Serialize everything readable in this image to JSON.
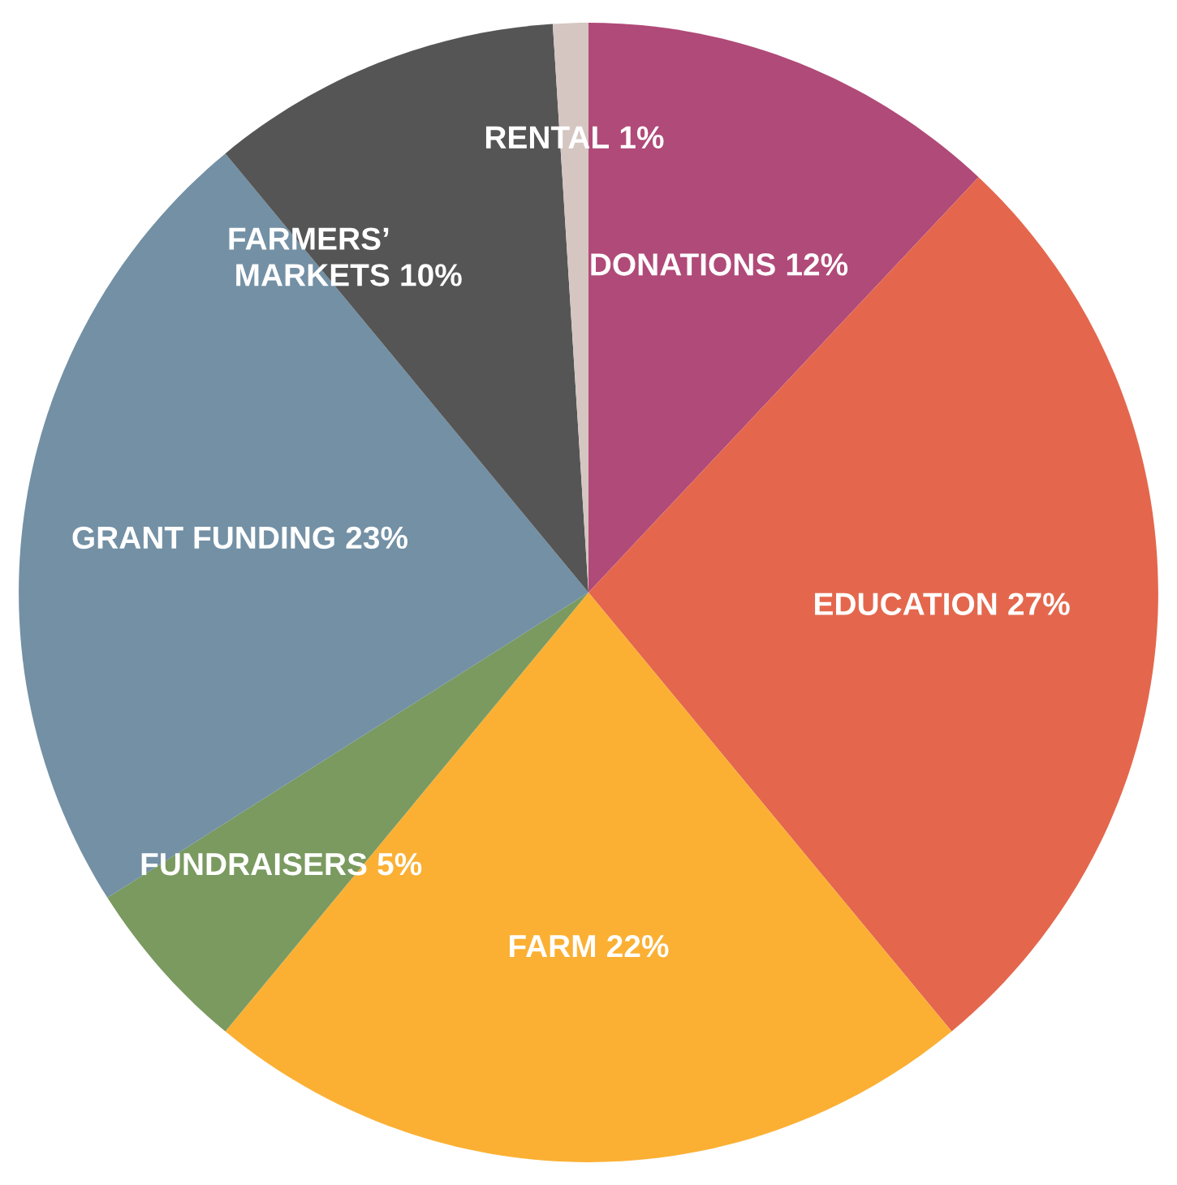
{
  "chart_data": {
    "type": "pie",
    "value_labels": [
      "12%",
      "27%",
      "22%",
      "5%",
      "23%",
      "10%",
      "1%"
    ],
    "categories": [
      "DONATIONS",
      "EDUCATION",
      "FARM",
      "FUNDRAISERS",
      "GRANT FUNDING",
      "FARMERS’ MARKETS",
      "RENTAL"
    ],
    "values": [
      12,
      27,
      22,
      5,
      23,
      10,
      1
    ],
    "colors": [
      "#b04a78",
      "#e4674d",
      "#fbb034",
      "#7a9a60",
      "#7390a5",
      "#555555",
      "#d5c6c2"
    ]
  }
}
